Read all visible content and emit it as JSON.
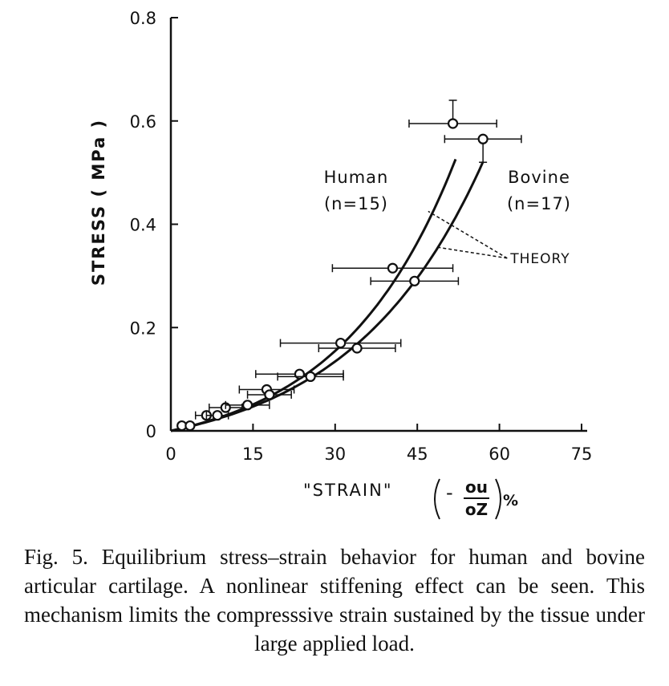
{
  "chart_data": {
    "type": "scatter",
    "title": "",
    "ylabel": "STRESS ( MPa )",
    "xlabel": {
      "prefix": "\"STRAIN\"",
      "minus": "-",
      "numerator": "ou",
      "denominator": "oZ",
      "suffix": "%"
    },
    "xlim": [
      0,
      75
    ],
    "ylim": [
      0,
      0.8
    ],
    "x_ticks": [
      0,
      15,
      30,
      45,
      60,
      75
    ],
    "x_tick_labels": [
      "0",
      "15",
      "30",
      "45",
      "60",
      "75"
    ],
    "y_ticks": [
      0,
      0.2,
      0.4,
      0.6,
      0.8
    ],
    "y_tick_labels": [
      "0",
      "0.2",
      "0.4",
      "0.6",
      "0.8"
    ],
    "grid": false,
    "series": [
      {
        "name": "Human (n=15)",
        "label_lines": [
          "Human",
          "(n=15)"
        ],
        "points": [
          {
            "x": 2,
            "y": 0.01,
            "xerr": 0
          },
          {
            "x": 6.5,
            "y": 0.03,
            "xerr": 2
          },
          {
            "x": 10,
            "y": 0.045,
            "xerr": 3
          },
          {
            "x": 17.5,
            "y": 0.08,
            "xerr": 5
          },
          {
            "x": 23.5,
            "y": 0.11,
            "xerr": 8
          },
          {
            "x": 31,
            "y": 0.17,
            "xerr": 11
          },
          {
            "x": 40.5,
            "y": 0.315,
            "xerr": 11
          },
          {
            "x": 51.5,
            "y": 0.595,
            "xerr": 8,
            "yerr_up": 0.045
          }
        ],
        "theory_curve": {
          "a": 0.05,
          "b": 0.047,
          "x_end": 52
        }
      },
      {
        "name": "Bovine (n=17)",
        "label_lines": [
          "Bovine",
          "(n=17)"
        ],
        "points": [
          {
            "x": 3.5,
            "y": 0.01,
            "xerr": 0
          },
          {
            "x": 8.5,
            "y": 0.03,
            "xerr": 2
          },
          {
            "x": 14,
            "y": 0.05,
            "xerr": 4
          },
          {
            "x": 18,
            "y": 0.07,
            "xerr": 4
          },
          {
            "x": 25.5,
            "y": 0.105,
            "xerr": 6
          },
          {
            "x": 34,
            "y": 0.16,
            "xerr": 7
          },
          {
            "x": 44.5,
            "y": 0.29,
            "xerr": 8
          },
          {
            "x": 57,
            "y": 0.565,
            "xerr": 7,
            "yerr_down": 0.045
          }
        ],
        "theory_curve": {
          "a": 0.055,
          "b": 0.0412,
          "x_end": 57
        }
      }
    ],
    "annotations": [
      {
        "text": "THEORY",
        "x": 62,
        "y": 0.325,
        "pointers": [
          [
            47,
            0.425
          ],
          [
            49,
            0.355
          ]
        ]
      }
    ]
  },
  "caption": "Fig. 5. Equilibrium stress–strain behavior for human and bovine articular cartilage. A nonlinear stiffening effect can be seen. This mechanism limits the compresssive strain sustained by the tissue under large applied load."
}
